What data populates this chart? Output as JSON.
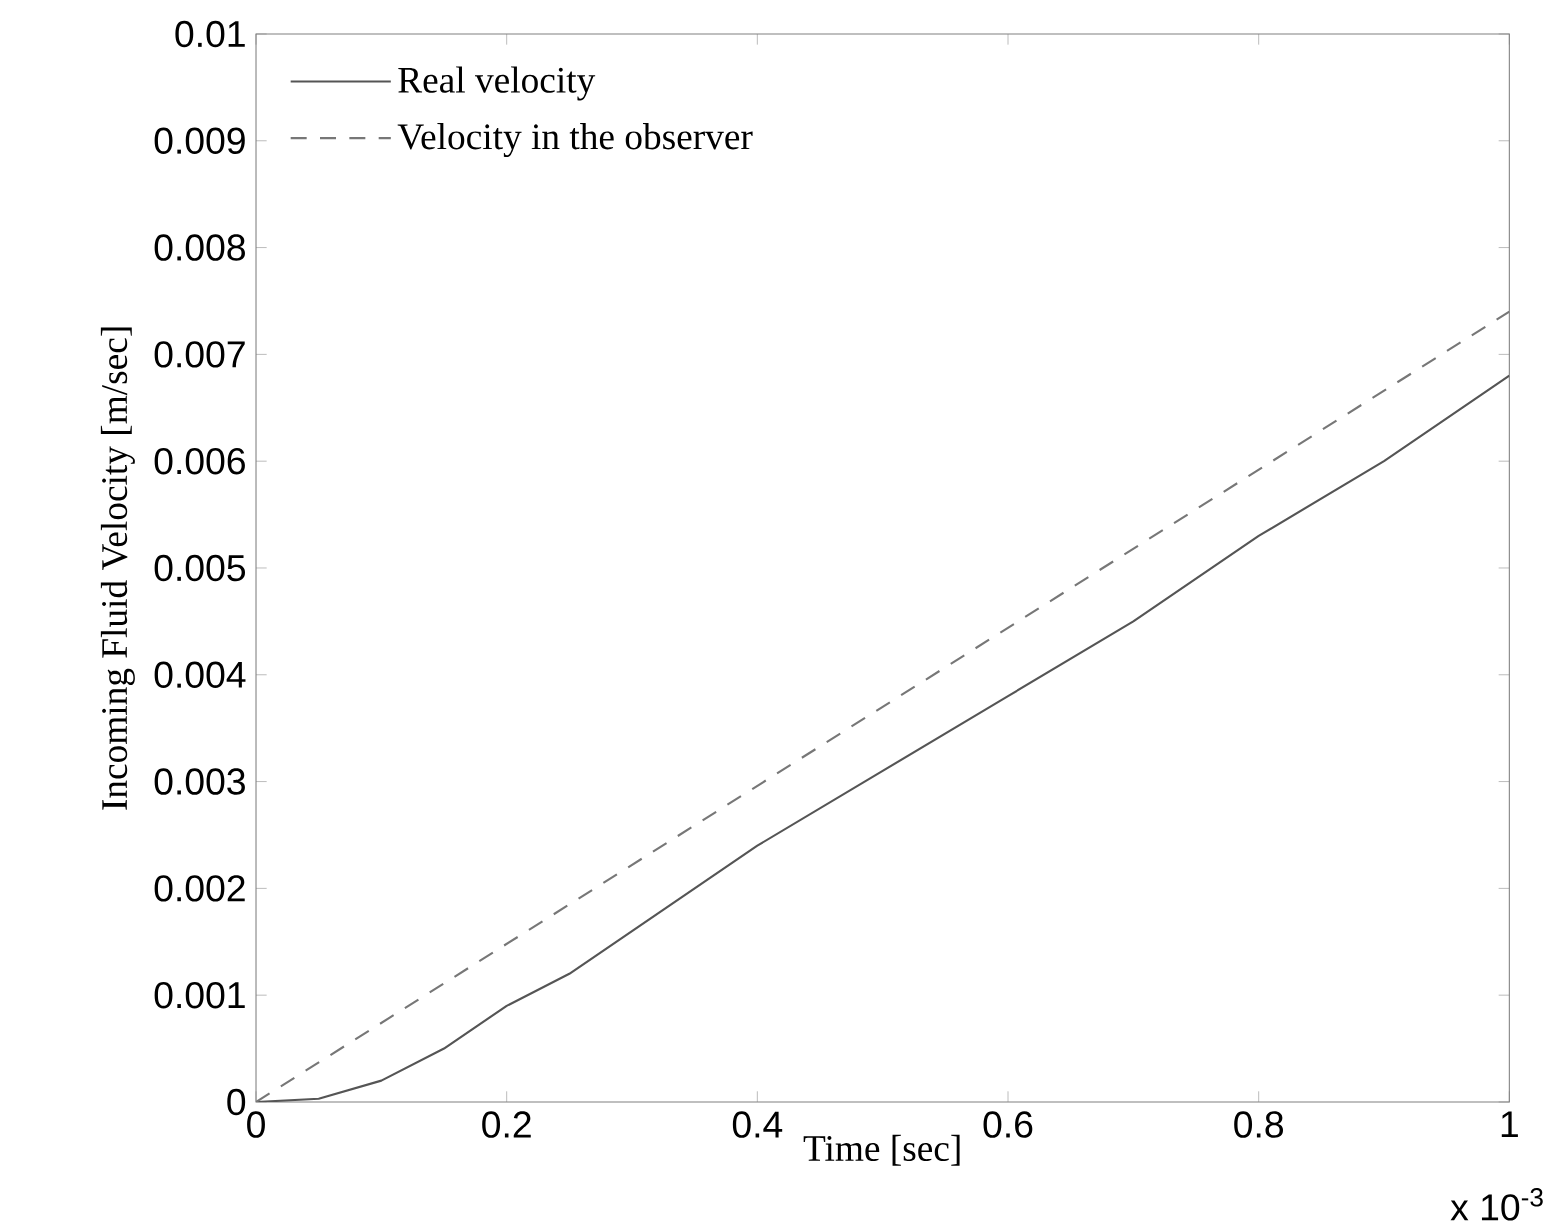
{
  "chart_data": {
    "type": "line",
    "xlabel": "Time [sec]",
    "ylabel": "Incoming Fluid Velocity [m/sec]",
    "annotations": [
      "x 10$^{-3}$"
    ],
    "series": [
      {
        "name": "Real velocity",
        "color": "#555555",
        "line_style": "solid",
        "x": [
          0,
          0.05,
          0.1,
          0.15,
          0.2,
          0.25,
          0.3,
          0.4,
          0.5,
          0.6,
          0.7,
          0.8,
          0.9,
          1
        ],
        "values": [
          0,
          3e-05,
          0.0002,
          0.0005,
          0.0009,
          0.0012,
          0.0016,
          0.0024,
          0.0031,
          0.0038,
          0.0045,
          0.0053,
          0.006,
          0.0068
        ]
      },
      {
        "name": "Velocity in the observer",
        "color": "#777777",
        "line_style": "dashed",
        "x": [
          0,
          0.5,
          1
        ],
        "values": [
          0,
          0.0037,
          0.0074
        ]
      }
    ],
    "xlim": [
      0,
      1
    ],
    "ylim": [
      0,
      0.01
    ],
    "xticks": [
      0,
      0.2,
      0.4,
      0.6,
      0.8,
      1
    ],
    "yticks": [
      0,
      0.001,
      0.002,
      0.003,
      0.004,
      0.005,
      0.006,
      0.007,
      0.008,
      0.009,
      0.01
    ],
    "grid": false,
    "legend": "top left",
    "marker": "none"
  }
}
